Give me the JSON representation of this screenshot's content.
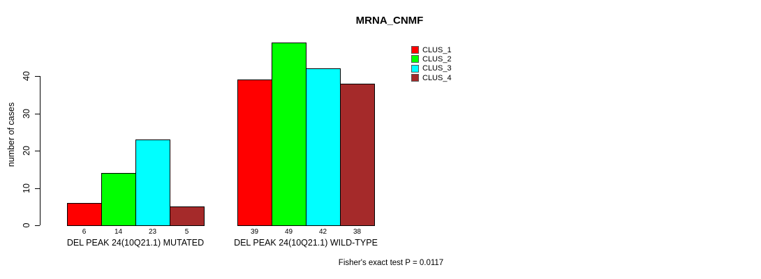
{
  "chart_data": {
    "type": "bar",
    "title": "MRNA_CNMF",
    "ylabel": "number of cases",
    "ylim": [
      0,
      40
    ],
    "yticks": [
      0,
      10,
      20,
      30,
      40
    ],
    "grid": false,
    "legend_position": "top-right",
    "categories": [
      "DEL PEAK 24(10Q21.1) MUTATED",
      "DEL PEAK 24(10Q21.1) WILD-TYPE"
    ],
    "series": [
      {
        "name": "CLUS_1",
        "color": "#FF0000",
        "values": [
          6,
          39
        ]
      },
      {
        "name": "CLUS_2",
        "color": "#00FF00",
        "values": [
          14,
          49
        ]
      },
      {
        "name": "CLUS_3",
        "color": "#00FFFF",
        "values": [
          23,
          42
        ]
      },
      {
        "name": "CLUS_4",
        "color": "#A52A2A",
        "values": [
          5,
          38
        ]
      }
    ],
    "annotation": "Fisher's exact test P = 0.0117"
  }
}
